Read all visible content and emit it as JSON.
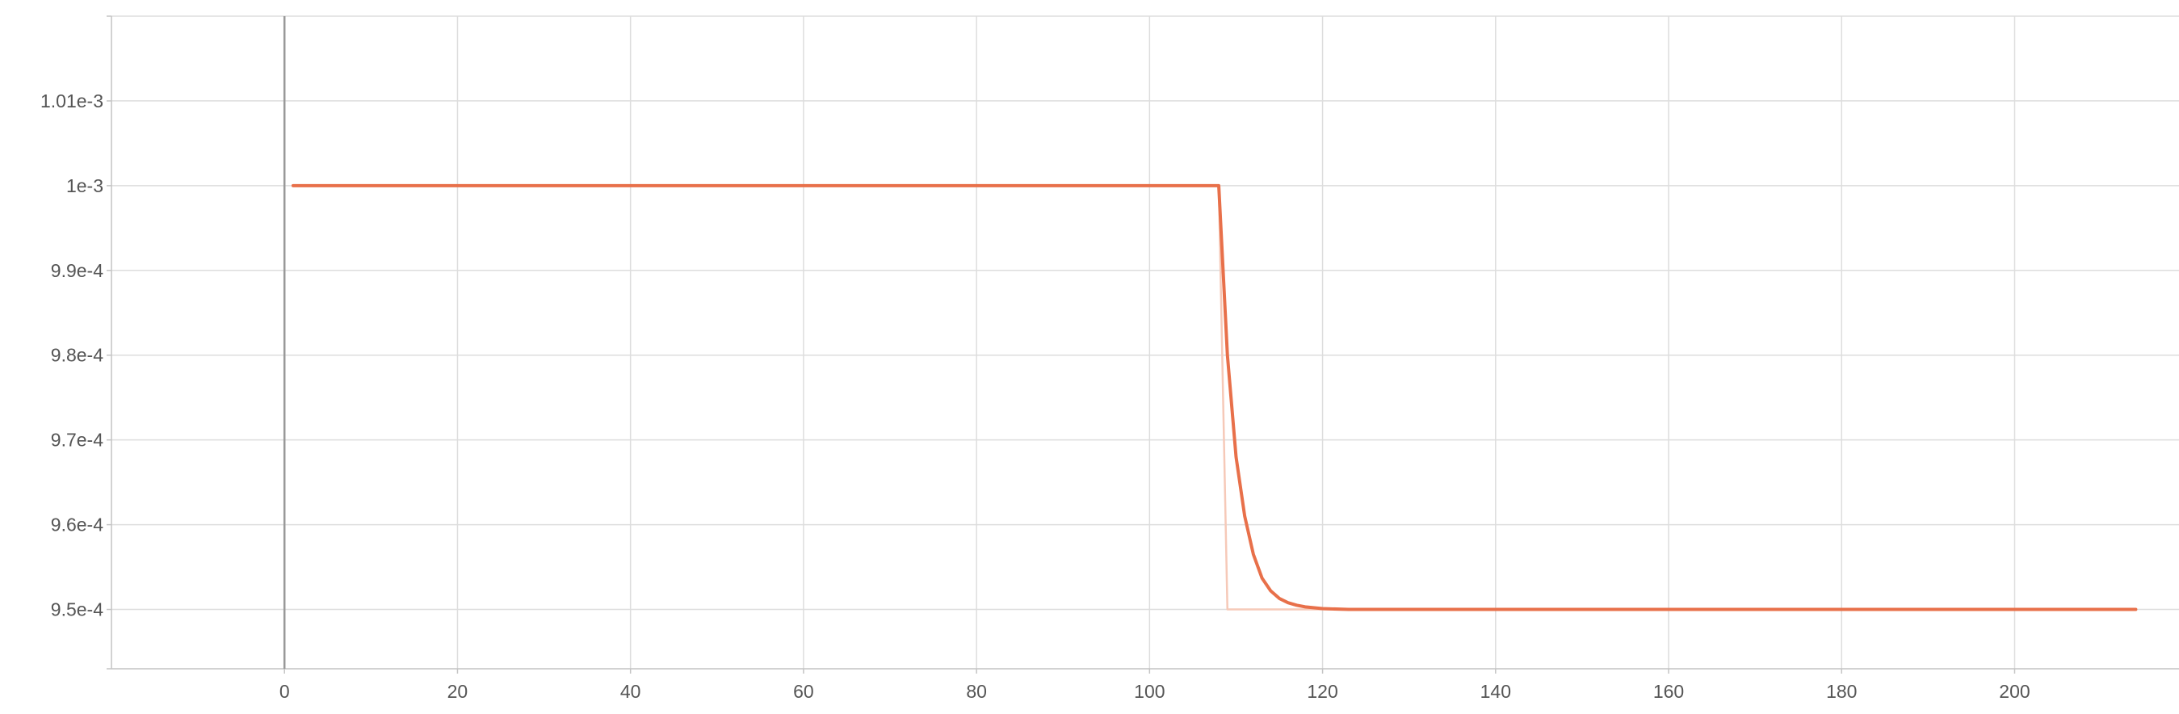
{
  "chart_data": {
    "type": "line",
    "title": "",
    "xlabel": "",
    "ylabel": "",
    "xlim": [
      -20,
      219
    ],
    "ylim": [
      0.000943,
      0.00102
    ],
    "x_ticks": [
      0,
      20,
      40,
      60,
      80,
      100,
      120,
      140,
      160,
      180,
      200
    ],
    "x_tick_labels": [
      "0",
      "20",
      "40",
      "60",
      "80",
      "100",
      "120",
      "140",
      "160",
      "180",
      "200"
    ],
    "y_ticks": [
      0.00095,
      0.00096,
      0.00097,
      0.00098,
      0.00099,
      0.001,
      0.00101
    ],
    "y_tick_labels": [
      "9.5e-4",
      "9.6e-4",
      "9.7e-4",
      "9.8e-4",
      "9.9e-4",
      "1e-3",
      "1.01e-3"
    ],
    "grid": true,
    "legend": "none",
    "colors": {
      "smoothed": "#e8704a",
      "raw": "#f6c9b8",
      "zero_line": "#999999"
    },
    "series": [
      {
        "role": "raw",
        "x": [
          1,
          108,
          109,
          214
        ],
        "y": [
          0.001,
          0.001,
          0.00095,
          0.00095
        ]
      },
      {
        "role": "smoothed",
        "x": [
          1,
          20,
          40,
          60,
          80,
          100,
          108,
          109,
          110,
          111,
          112,
          113,
          114,
          115,
          116,
          117,
          118,
          120,
          123,
          130,
          150,
          180,
          214
        ],
        "y": [
          0.001,
          0.001,
          0.001,
          0.001,
          0.001,
          0.001,
          0.001,
          0.00098,
          0.000968,
          0.000961,
          0.0009565,
          0.0009537,
          0.0009522,
          0.0009513,
          0.0009508,
          0.0009505,
          0.0009503,
          0.0009501,
          0.00095,
          0.00095,
          0.00095,
          0.00095,
          0.00095
        ]
      }
    ]
  }
}
